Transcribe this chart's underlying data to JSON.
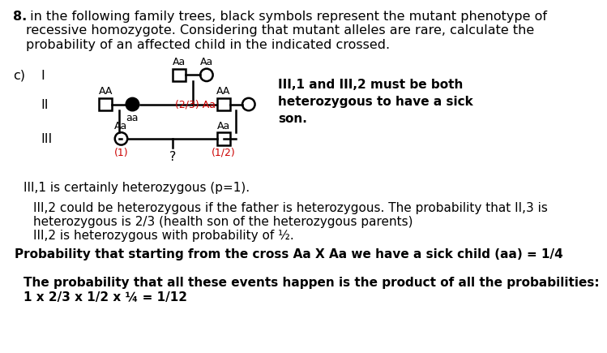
{
  "title_bold": "8.",
  "title_rest": " in the following family trees, black symbols represent the mutant phenotype of\nrecessive homozygote. Considering that mutant alleles are rare, calculate the\nprobability of an affected child in the indicated crossed.",
  "background_color": "#ffffff",
  "note_text": "III,1 and III,2 must be both\nheterozygous to have a sick\nson.",
  "explanations": [
    {
      "text": "III,1 is certainly heterozygous (p=1).",
      "bold": false,
      "indent": 25
    },
    {
      "text": "III,2 could be heterozygous if the father is heterozygous. The probability that II,3 is\nheterozygous is 2/3 (health son of the heterozygous parents)",
      "bold": false,
      "indent": 40
    },
    {
      "text": "III,2 is heterozygous with probability of ½.",
      "bold": false,
      "indent": 40
    },
    {
      "text": "Probability that starting from the cross Aa X Aa we have a sick child (aa) = 1/4",
      "bold": true,
      "indent": 10
    },
    {
      "text": "The probability that all these events happen is the product of all the probabilities:\n1 x 2/3 x 1/2 x ¼ = 1/12",
      "bold": true,
      "indent": 25
    }
  ],
  "colors": {
    "black": "#000000",
    "white": "#ffffff",
    "red": "#cc0000",
    "text": "#000000"
  }
}
